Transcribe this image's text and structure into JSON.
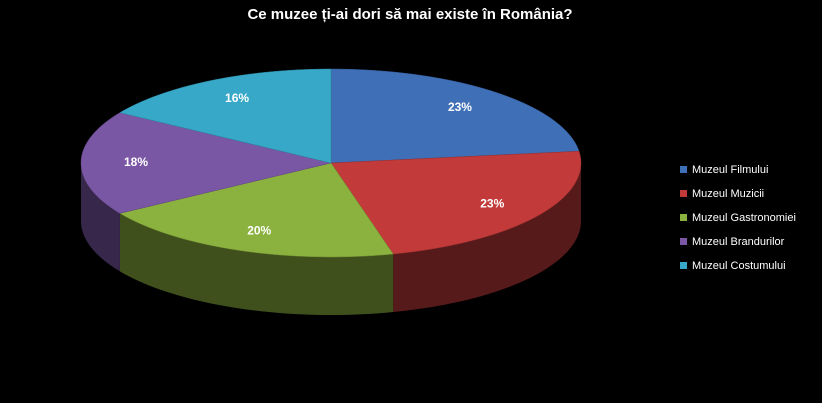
{
  "chart_data": {
    "type": "pie",
    "title": "Ce muzee ți-ai dori să mai existe în România?",
    "categories": [
      "Muzeul Filmului",
      "Muzeul Muzicii",
      "Muzeul Gastronomiei",
      "Muzeul Brandurilor",
      "Muzeul Costumului"
    ],
    "values": [
      23,
      23,
      20,
      18,
      16
    ],
    "value_labels": [
      "23%",
      "23%",
      "20%",
      "18%",
      "16%"
    ],
    "colors": [
      "#3f6fb6",
      "#c23a3a",
      "#8bb23e",
      "#7a57a5",
      "#37a8c8"
    ],
    "legend": "right"
  }
}
